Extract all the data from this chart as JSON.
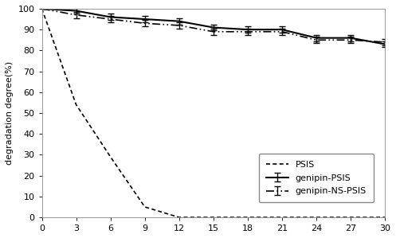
{
  "x": [
    0,
    3,
    6,
    9,
    12,
    15,
    18,
    21,
    24,
    27,
    30
  ],
  "psis": [
    100,
    54,
    29,
    5,
    0,
    0,
    0,
    0,
    0,
    0,
    0
  ],
  "genipin_psis": [
    100,
    99,
    96,
    95,
    94,
    91,
    90,
    90,
    86,
    86,
    83
  ],
  "genipin_ns_psis": [
    100,
    97,
    95,
    93,
    92,
    89,
    89,
    89,
    85,
    85,
    84
  ],
  "genipin_psis_err": [
    0,
    1.5,
    1.5,
    1.5,
    1.5,
    1.5,
    1.5,
    1.5,
    1.5,
    1.5,
    1.5
  ],
  "genipin_ns_psis_err": [
    0,
    1.5,
    1.5,
    1.5,
    1.5,
    1.5,
    1.5,
    1.5,
    1.5,
    1.5,
    1.5
  ],
  "ylabel": "degradation degree(%)",
  "xlim": [
    0,
    30
  ],
  "ylim": [
    0,
    100
  ],
  "xticks": [
    0,
    3,
    6,
    9,
    12,
    15,
    18,
    21,
    24,
    27,
    30
  ],
  "yticks": [
    0,
    10,
    20,
    30,
    40,
    50,
    60,
    70,
    80,
    90,
    100
  ],
  "legend_labels": [
    "PSIS",
    "genipin-PSIS",
    "genipin-NS-PSIS"
  ],
  "line_color": "#000000",
  "background_color": "#ffffff"
}
